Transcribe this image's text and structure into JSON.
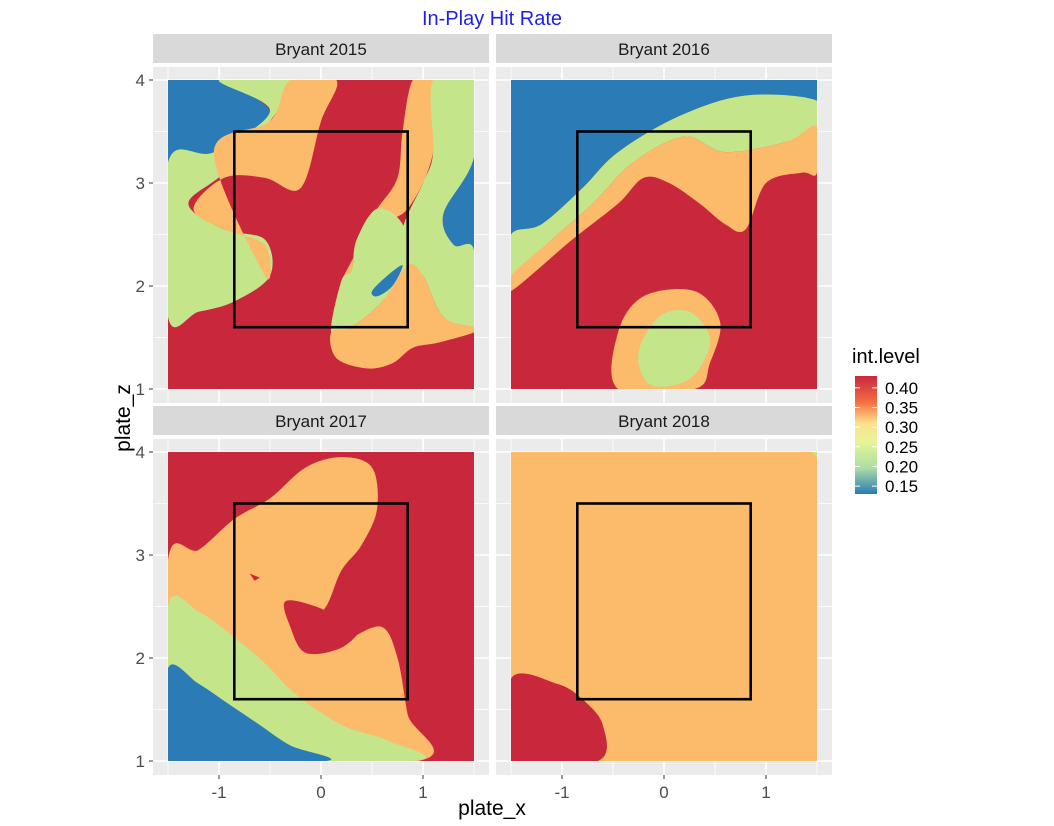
{
  "title": "In-Play Hit Rate",
  "colors": {
    "title": "#1f1fe6",
    "panel_bg": "#ebebeb",
    "strip_bg": "#d9d9d9",
    "grid": "#ffffff",
    "red": "#c9283c",
    "orange": "#fcba6b",
    "green": "#c4e58a",
    "blue": "#2b7bb6"
  },
  "chart_data": {
    "type": "heatmap",
    "title": "In-Play Hit Rate",
    "xlabel": "plate_x",
    "ylabel": "plate_z",
    "xlim": [
      -1.5,
      1.5
    ],
    "ylim": [
      1,
      4
    ],
    "x_ticks": [
      "-1",
      "0",
      "1"
    ],
    "x_tick_values": [
      -1,
      0,
      1
    ],
    "y_ticks": [
      "1",
      "2",
      "3",
      "4"
    ],
    "y_tick_values": [
      1,
      2,
      3,
      4
    ],
    "strike_zone": {
      "x": [
        -0.85,
        0.85
      ],
      "z": [
        1.6,
        3.5
      ]
    },
    "legend": {
      "title": "int.level",
      "placement": "right",
      "labels": [
        "0.40",
        "0.35",
        "0.30",
        "0.25",
        "0.20",
        "0.15"
      ],
      "values": [
        0.4,
        0.35,
        0.3,
        0.25,
        0.2,
        0.15
      ],
      "range": [
        0.13,
        0.43
      ]
    },
    "facets": [
      {
        "label": "Bryant 2015",
        "background": "red",
        "regions": [
          {
            "level": "blue",
            "points": [
              [
                -1.5,
                4
              ],
              [
                -1.0,
                4
              ],
              [
                -0.5,
                3.7
              ],
              [
                -0.75,
                3.45
              ],
              [
                -1.05,
                3.3
              ],
              [
                -1.5,
                3.2
              ]
            ]
          },
          {
            "level": "blue",
            "points": [
              [
                -1.5,
                2.6
              ],
              [
                -1.45,
                2.55
              ],
              [
                -1.5,
                2.45
              ]
            ]
          },
          {
            "level": "blue",
            "points": [
              [
                1.5,
                3.25
              ],
              [
                1.2,
                2.7
              ],
              [
                1.3,
                2.4
              ],
              [
                1.5,
                2.35
              ]
            ]
          },
          {
            "level": "green",
            "points": [
              [
                -1.5,
                3.2
              ],
              [
                -1.05,
                3.3
              ],
              [
                -0.5,
                3.7
              ],
              [
                -1.0,
                4
              ],
              [
                -0.3,
                4
              ],
              [
                -0.5,
                3.6
              ],
              [
                -0.95,
                3.1
              ],
              [
                -1.3,
                2.8
              ],
              [
                -0.95,
                2.55
              ],
              [
                -0.55,
                2.45
              ],
              [
                -0.5,
                2.1
              ],
              [
                -0.85,
                1.85
              ],
              [
                -1.2,
                1.75
              ],
              [
                -1.5,
                1.7
              ]
            ]
          },
          {
            "level": "orange",
            "points": [
              [
                -1.05,
                3.3
              ],
              [
                -0.5,
                3.6
              ],
              [
                -0.3,
                4
              ],
              [
                0.15,
                4
              ],
              [
                0.0,
                3.6
              ],
              [
                -0.2,
                2.95
              ],
              [
                -0.55,
                3.05
              ],
              [
                -0.95,
                3.05
              ],
              [
                -1.25,
                2.75
              ],
              [
                -0.95,
                2.55
              ],
              [
                -0.55,
                2.4
              ],
              [
                -0.55,
                2.1
              ]
            ]
          },
          {
            "level": "orange",
            "points": [
              [
                0.2,
                2.05
              ],
              [
                0.5,
                2.55
              ],
              [
                0.85,
                2.75
              ],
              [
                1.1,
                3.3
              ],
              [
                1.1,
                4
              ],
              [
                0.9,
                4
              ],
              [
                0.8,
                3.5
              ],
              [
                0.75,
                3.05
              ],
              [
                0.55,
                2.75
              ],
              [
                0.35,
                2.45
              ],
              [
                0.3,
                2.15
              ]
            ]
          },
          {
            "level": "green",
            "points": [
              [
                1.1,
                4
              ],
              [
                1.5,
                4
              ],
              [
                1.5,
                3.25
              ],
              [
                1.2,
                2.7
              ],
              [
                1.3,
                2.4
              ],
              [
                1.5,
                2.35
              ],
              [
                1.5,
                1.6
              ],
              [
                1.2,
                1.7
              ],
              [
                1.0,
                2.1
              ],
              [
                0.85,
                2.2
              ],
              [
                0.8,
                2.55
              ],
              [
                1.0,
                3.0
              ],
              [
                1.1,
                3.3
              ]
            ]
          },
          {
            "level": "green",
            "points": [
              [
                0.2,
                2.05
              ],
              [
                0.3,
                2.15
              ],
              [
                0.35,
                2.45
              ],
              [
                0.55,
                2.75
              ],
              [
                0.8,
                2.6
              ],
              [
                0.85,
                2.2
              ],
              [
                0.6,
                1.85
              ],
              [
                0.3,
                1.6
              ],
              [
                0.1,
                1.55
              ]
            ]
          },
          {
            "level": "orange",
            "points": [
              [
                0.1,
                1.55
              ],
              [
                0.3,
                1.6
              ],
              [
                0.6,
                1.85
              ],
              [
                0.85,
                2.2
              ],
              [
                1.0,
                2.1
              ],
              [
                1.2,
                1.7
              ],
              [
                1.5,
                1.6
              ],
              [
                1.5,
                1.55
              ],
              [
                1.15,
                1.45
              ],
              [
                0.9,
                1.4
              ],
              [
                0.7,
                1.25
              ],
              [
                0.45,
                1.2
              ],
              [
                0.15,
                1.3
              ]
            ]
          },
          {
            "level": "blue",
            "points": [
              [
                0.5,
                1.95
              ],
              [
                0.65,
                2.1
              ],
              [
                0.8,
                2.2
              ],
              [
                0.7,
                2.0
              ],
              [
                0.55,
                1.9
              ]
            ]
          }
        ]
      },
      {
        "label": "Bryant 2016",
        "background": "red",
        "regions": [
          {
            "level": "blue",
            "points": [
              [
                -1.5,
                4
              ],
              [
                1.5,
                4
              ],
              [
                1.5,
                3.8
              ],
              [
                0.8,
                3.85
              ],
              [
                0.15,
                3.65
              ],
              [
                -0.45,
                3.3
              ],
              [
                -0.8,
                2.95
              ],
              [
                -1.2,
                2.6
              ],
              [
                -1.5,
                2.5
              ]
            ]
          },
          {
            "level": "green",
            "points": [
              [
                -1.5,
                2.5
              ],
              [
                -1.2,
                2.6
              ],
              [
                -0.8,
                2.95
              ],
              [
                -0.45,
                3.3
              ],
              [
                0.15,
                3.65
              ],
              [
                0.8,
                3.85
              ],
              [
                1.5,
                3.8
              ],
              [
                1.5,
                3.55
              ],
              [
                1.2,
                3.4
              ],
              [
                0.6,
                3.3
              ],
              [
                0.2,
                3.45
              ],
              [
                -0.3,
                3.2
              ],
              [
                -0.7,
                2.8
              ],
              [
                -1.1,
                2.45
              ],
              [
                -1.5,
                2.1
              ]
            ]
          },
          {
            "level": "orange",
            "points": [
              [
                -1.5,
                2.1
              ],
              [
                -1.1,
                2.45
              ],
              [
                -0.7,
                2.8
              ],
              [
                -0.3,
                3.2
              ],
              [
                0.2,
                3.45
              ],
              [
                0.6,
                3.3
              ],
              [
                1.2,
                3.4
              ],
              [
                1.5,
                3.55
              ],
              [
                1.5,
                3.1
              ],
              [
                1.35,
                3.1
              ],
              [
                1.0,
                3.0
              ],
              [
                0.8,
                2.55
              ],
              [
                0.6,
                2.6
              ],
              [
                0.35,
                2.8
              ],
              [
                0.05,
                3.0
              ],
              [
                -0.2,
                3.05
              ],
              [
                -0.45,
                2.8
              ],
              [
                -0.9,
                2.45
              ],
              [
                -1.5,
                1.95
              ]
            ]
          },
          {
            "level": "orange",
            "points": [
              [
                -0.45,
                1.0
              ],
              [
                -0.45,
                1.55
              ],
              [
                -0.2,
                1.9
              ],
              [
                0.3,
                1.95
              ],
              [
                0.55,
                1.65
              ],
              [
                0.45,
                1.25
              ],
              [
                0.3,
                1.0
              ]
            ]
          },
          {
            "level": "green",
            "points": [
              [
                -0.15,
                1.05
              ],
              [
                -0.25,
                1.35
              ],
              [
                -0.05,
                1.7
              ],
              [
                0.25,
                1.75
              ],
              [
                0.45,
                1.5
              ],
              [
                0.35,
                1.2
              ],
              [
                0.15,
                1.05
              ]
            ]
          }
        ]
      },
      {
        "label": "Bryant 2017",
        "background": "red",
        "regions": [
          {
            "level": "orange",
            "points": [
              [
                -1.5,
                2.95
              ],
              [
                -1.2,
                3.05
              ],
              [
                -0.85,
                3.35
              ],
              [
                -0.5,
                3.55
              ],
              [
                -0.15,
                3.85
              ],
              [
                0.2,
                3.95
              ],
              [
                0.5,
                3.85
              ],
              [
                0.55,
                3.45
              ],
              [
                0.4,
                3.1
              ],
              [
                0.2,
                2.85
              ],
              [
                0.05,
                2.5
              ],
              [
                -0.15,
                2.3
              ],
              [
                -0.15,
                2.15
              ],
              [
                0.0,
                2.05
              ],
              [
                0.3,
                2.2
              ],
              [
                0.6,
                2.3
              ],
              [
                0.75,
                2.0
              ],
              [
                0.85,
                1.45
              ],
              [
                0.95,
                1.0
              ],
              [
                -1.5,
                1.0
              ]
            ]
          },
          {
            "level": "green",
            "points": [
              [
                -1.5,
                2.5
              ],
              [
                -1.2,
                2.45
              ],
              [
                -0.85,
                2.2
              ],
              [
                -0.55,
                1.95
              ],
              [
                -0.25,
                1.65
              ],
              [
                0.2,
                1.35
              ],
              [
                0.65,
                1.2
              ],
              [
                0.9,
                1.0
              ],
              [
                -1.5,
                1.0
              ]
            ]
          },
          {
            "level": "blue",
            "points": [
              [
                -1.5,
                1.9
              ],
              [
                -1.2,
                1.75
              ],
              [
                -0.9,
                1.55
              ],
              [
                -0.6,
                1.35
              ],
              [
                -0.3,
                1.15
              ],
              [
                0.05,
                1.0
              ],
              [
                -1.5,
                1.0
              ]
            ]
          },
          {
            "level": "red",
            "points": [
              [
                -0.35,
                2.55
              ],
              [
                -0.05,
                2.5
              ],
              [
                0.25,
                2.35
              ],
              [
                0.4,
                2.3
              ],
              [
                0.2,
                2.1
              ],
              [
                -0.15,
                2.05
              ],
              [
                -0.3,
                2.3
              ]
            ]
          },
          {
            "level": "red",
            "points": [
              [
                -0.7,
                2.82
              ],
              [
                -0.6,
                2.78
              ],
              [
                -0.65,
                2.75
              ]
            ]
          }
        ]
      },
      {
        "label": "Bryant 2018",
        "background": "orange",
        "regions": [
          {
            "level": "red",
            "points": [
              [
                -1.5,
                1.8
              ],
              [
                -1.05,
                1.75
              ],
              [
                -0.8,
                1.6
              ],
              [
                -0.6,
                1.35
              ],
              [
                -0.65,
                1.0
              ],
              [
                -1.5,
                1.0
              ]
            ]
          },
          {
            "level": "green",
            "points": [
              [
                1.45,
                4
              ],
              [
                1.5,
                4
              ],
              [
                1.5,
                3.95
              ]
            ]
          }
        ]
      }
    ]
  }
}
